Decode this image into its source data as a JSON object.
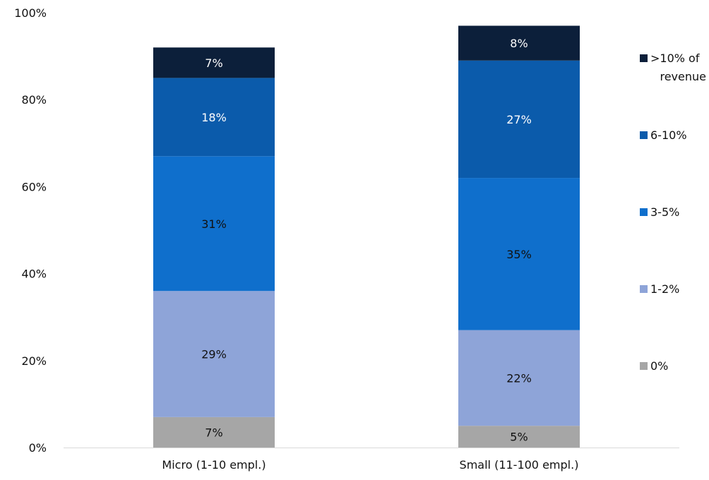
{
  "chart_data": {
    "type": "bar",
    "stacked": true,
    "categories": [
      "Micro (1-10 empl.)",
      "Small (11-100 empl.)"
    ],
    "y_ticks": [
      "0%",
      "20%",
      "40%",
      "60%",
      "80%",
      "100%"
    ],
    "ylim": [
      0,
      100
    ],
    "grid": false,
    "legend_position": "right",
    "series": [
      {
        "name": "0%",
        "color": "#a6a6a6",
        "values": [
          7,
          5
        ],
        "labels": [
          "7%",
          "5%"
        ]
      },
      {
        "name": "1-2%",
        "color": "#8ea4d8",
        "values": [
          29,
          22
        ],
        "labels": [
          "29%",
          "22%"
        ]
      },
      {
        "name": "3-5%",
        "color": "#0f6fcc",
        "values": [
          31,
          35
        ],
        "labels": [
          "31%",
          "35%"
        ]
      },
      {
        "name": "6-10%",
        "color": "#0b5bab",
        "values": [
          18,
          27
        ],
        "labels": [
          "18%",
          "27%"
        ]
      },
      {
        "name": ">10% of revenue",
        "legend_lines": [
          ">10% of",
          "revenue"
        ],
        "color": "#0c1f3a",
        "values": [
          7,
          8
        ],
        "labels": [
          "7%",
          "8%"
        ]
      }
    ]
  }
}
